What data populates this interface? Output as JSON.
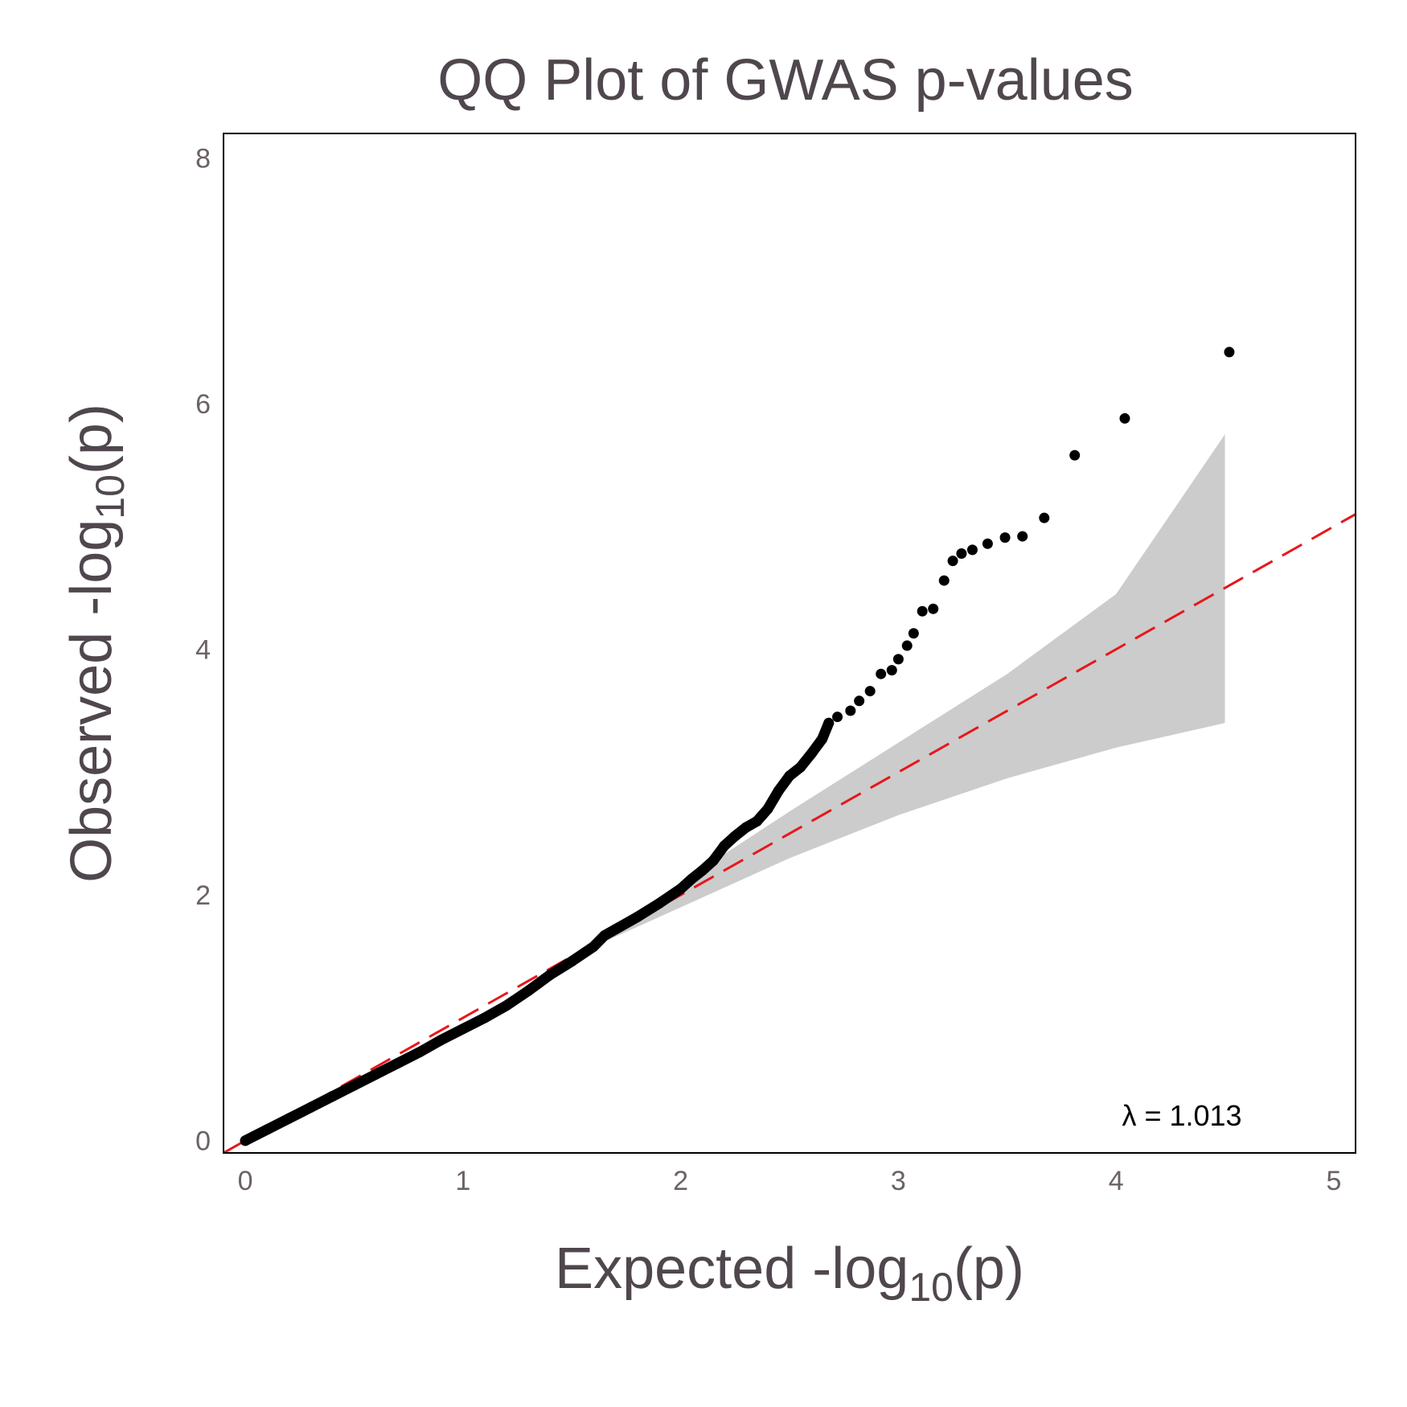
{
  "chart_data": {
    "type": "scatter",
    "title": "QQ Plot of GWAS p-values",
    "xlabel": {
      "main": "Expected -log",
      "sub": "10",
      "suffix": "(p)"
    },
    "ylabel": {
      "main": "Observed -log",
      "sub": "10",
      "suffix": "(p)"
    },
    "xlim": [
      -0.1,
      5.1
    ],
    "ylim": [
      -0.1,
      8.2
    ],
    "xticks": [
      "0",
      "1",
      "2",
      "3",
      "4",
      "5"
    ],
    "yticks": [
      "0",
      "2",
      "4",
      "6",
      "8"
    ],
    "grid": false,
    "annotation": "λ = 1.013",
    "colors": {
      "points": "#000000",
      "reference_line": "#e8161b",
      "confidence_band": "#cccccc",
      "frame": "#000000",
      "title_text": "#4f474d",
      "tick_text": "#6b6267"
    },
    "reference_line": {
      "slope": 1,
      "intercept": 0,
      "style": "dashed"
    },
    "confidence_band": {
      "x": [
        1.5,
        2.0,
        2.5,
        3.0,
        3.5,
        4.0,
        4.5
      ],
      "upper": [
        1.5,
        2.1,
        2.68,
        3.24,
        3.8,
        4.45,
        5.75
      ],
      "lower": [
        1.5,
        1.9,
        2.3,
        2.65,
        2.95,
        3.2,
        3.4
      ]
    },
    "series": [
      {
        "points": [
          [
            0.0,
            0.0
          ],
          [
            0.1,
            0.09
          ],
          [
            0.2,
            0.18
          ],
          [
            0.3,
            0.27
          ],
          [
            0.4,
            0.36
          ],
          [
            0.5,
            0.45
          ],
          [
            0.6,
            0.54
          ],
          [
            0.7,
            0.63
          ],
          [
            0.8,
            0.72
          ],
          [
            0.9,
            0.82
          ],
          [
            1.0,
            0.91
          ],
          [
            1.1,
            1.0
          ],
          [
            1.2,
            1.1
          ],
          [
            1.3,
            1.22
          ],
          [
            1.4,
            1.35
          ],
          [
            1.5,
            1.46
          ],
          [
            1.6,
            1.58
          ],
          [
            1.65,
            1.67
          ],
          [
            1.7,
            1.72
          ],
          [
            1.8,
            1.82
          ],
          [
            1.9,
            1.93
          ],
          [
            2.0,
            2.05
          ],
          [
            2.05,
            2.13
          ],
          [
            2.1,
            2.2
          ],
          [
            2.15,
            2.28
          ],
          [
            2.2,
            2.4
          ],
          [
            2.25,
            2.48
          ],
          [
            2.3,
            2.55
          ],
          [
            2.35,
            2.6
          ],
          [
            2.4,
            2.7
          ],
          [
            2.45,
            2.85
          ],
          [
            2.5,
            2.97
          ],
          [
            2.55,
            3.04
          ],
          [
            2.6,
            3.15
          ],
          [
            2.65,
            3.27
          ],
          [
            2.68,
            3.4
          ],
          [
            2.72,
            3.45
          ],
          [
            2.78,
            3.5
          ],
          [
            2.82,
            3.58
          ],
          [
            2.87,
            3.66
          ],
          [
            2.92,
            3.8
          ],
          [
            2.97,
            3.83
          ],
          [
            3.0,
            3.92
          ],
          [
            3.04,
            4.03
          ],
          [
            3.07,
            4.13
          ],
          [
            3.11,
            4.31
          ],
          [
            3.16,
            4.33
          ],
          [
            3.21,
            4.56
          ],
          [
            3.25,
            4.72
          ],
          [
            3.29,
            4.78
          ],
          [
            3.34,
            4.81
          ],
          [
            3.41,
            4.86
          ],
          [
            3.49,
            4.91
          ],
          [
            3.57,
            4.92
          ],
          [
            3.67,
            5.07
          ],
          [
            3.81,
            5.58
          ],
          [
            4.04,
            5.88
          ],
          [
            4.52,
            6.42
          ]
        ]
      }
    ]
  }
}
